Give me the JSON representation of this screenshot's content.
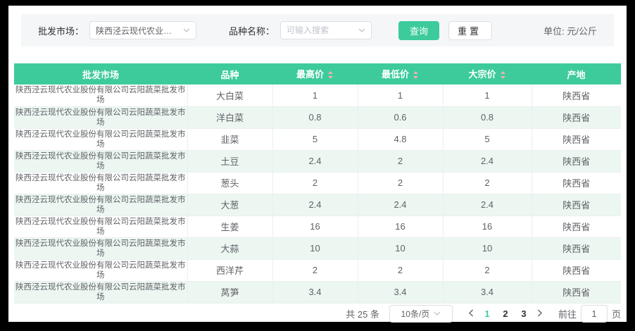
{
  "filters": {
    "market_label": "批发市场：",
    "market_value": "陕西泾云现代农业股份...",
    "variety_label": "品种名称：",
    "variety_placeholder": "可输入搜索",
    "query_button": "查询",
    "reset_button": "重置",
    "unit_text": "单位: 元/公斤"
  },
  "table": {
    "columns": [
      {
        "label": "批发市场",
        "sortable": false
      },
      {
        "label": "品种",
        "sortable": false
      },
      {
        "label": "最高价",
        "sortable": true
      },
      {
        "label": "最低价",
        "sortable": true
      },
      {
        "label": "大宗价",
        "sortable": true
      },
      {
        "label": "产地",
        "sortable": false
      }
    ],
    "rows": [
      [
        "陕西泾云现代农业股份有限公司云阳蔬菜批发市场",
        "大白菜",
        "1",
        "1",
        "1",
        "陕西省"
      ],
      [
        "陕西泾云现代农业股份有限公司云阳蔬菜批发市场",
        "洋白菜",
        "0.8",
        "0.6",
        "0.8",
        "陕西省"
      ],
      [
        "陕西泾云现代农业股份有限公司云阳蔬菜批发市场",
        "韭菜",
        "5",
        "4.8",
        "5",
        "陕西省"
      ],
      [
        "陕西泾云现代农业股份有限公司云阳蔬菜批发市场",
        "土豆",
        "2.4",
        "2",
        "2.4",
        "陕西省"
      ],
      [
        "陕西泾云现代农业股份有限公司云阳蔬菜批发市场",
        "葱头",
        "2",
        "2",
        "2",
        "陕西省"
      ],
      [
        "陕西泾云现代农业股份有限公司云阳蔬菜批发市场",
        "大葱",
        "2.4",
        "2.4",
        "2.4",
        "陕西省"
      ],
      [
        "陕西泾云现代农业股份有限公司云阳蔬菜批发市场",
        "生姜",
        "16",
        "16",
        "16",
        "陕西省"
      ],
      [
        "陕西泾云现代农业股份有限公司云阳蔬菜批发市场",
        "大蒜",
        "10",
        "10",
        "10",
        "陕西省"
      ],
      [
        "陕西泾云现代农业股份有限公司云阳蔬菜批发市场",
        "西洋芹",
        "2",
        "2",
        "2",
        "陕西省"
      ],
      [
        "陕西泾云现代农业股份有限公司云阳蔬菜批发市场",
        "莴笋",
        "3.4",
        "3.4",
        "3.4",
        "陕西省"
      ]
    ]
  },
  "pagination": {
    "total_text": "共 25 条",
    "page_size": "10条/页",
    "pages": [
      "1",
      "2",
      "3"
    ],
    "active_page": "1",
    "goto_label": "前往",
    "goto_value": "1",
    "goto_suffix": "页"
  },
  "colors": {
    "accent": "#3dcb9c",
    "stripe": "#ecf7f2",
    "sort_caret": "#f3b0b0"
  }
}
